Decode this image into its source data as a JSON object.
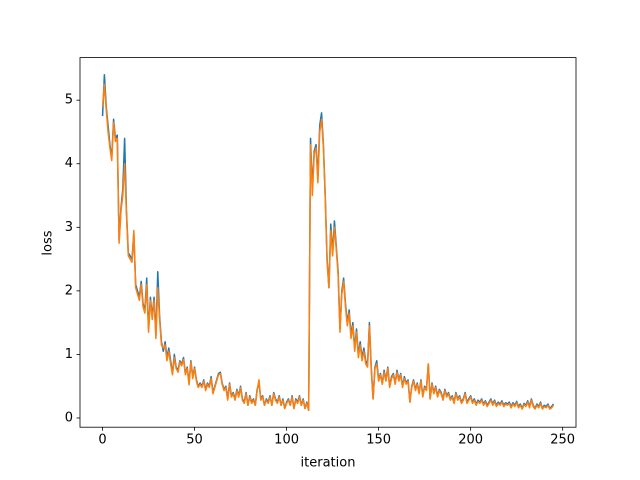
{
  "chart_data": {
    "type": "line",
    "x_label": "iteration",
    "y_label": "loss",
    "x": [
      0,
      1,
      2,
      3,
      4,
      5,
      6,
      7,
      8,
      9,
      10,
      11,
      12,
      13,
      14,
      15,
      16,
      17,
      18,
      19,
      20,
      21,
      22,
      23,
      24,
      25,
      26,
      27,
      28,
      29,
      30,
      31,
      32,
      33,
      34,
      35,
      36,
      37,
      38,
      39,
      40,
      41,
      42,
      43,
      44,
      45,
      46,
      47,
      48,
      49,
      50,
      51,
      52,
      53,
      54,
      55,
      56,
      57,
      58,
      59,
      60,
      61,
      62,
      63,
      64,
      65,
      66,
      67,
      68,
      69,
      70,
      71,
      72,
      73,
      74,
      75,
      76,
      77,
      78,
      79,
      80,
      81,
      82,
      83,
      84,
      85,
      86,
      87,
      88,
      89,
      90,
      91,
      92,
      93,
      94,
      95,
      96,
      97,
      98,
      99,
      100,
      101,
      102,
      103,
      104,
      105,
      106,
      107,
      108,
      109,
      110,
      111,
      112,
      113,
      114,
      115,
      116,
      117,
      118,
      119,
      120,
      121,
      122,
      123,
      124,
      125,
      126,
      127,
      128,
      129,
      130,
      131,
      132,
      133,
      134,
      135,
      136,
      137,
      138,
      139,
      140,
      141,
      142,
      143,
      144,
      145,
      146,
      147,
      148,
      149,
      150,
      151,
      152,
      153,
      154,
      155,
      156,
      157,
      158,
      159,
      160,
      161,
      162,
      163,
      164,
      165,
      166,
      167,
      168,
      169,
      170,
      171,
      172,
      173,
      174,
      175,
      176,
      177,
      178,
      179,
      180,
      181,
      182,
      183,
      184,
      185,
      186,
      187,
      188,
      189,
      190,
      191,
      192,
      193,
      194,
      195,
      196,
      197,
      198,
      199,
      200,
      201,
      202,
      203,
      204,
      205,
      206,
      207,
      208,
      209,
      210,
      211,
      212,
      213,
      214,
      215,
      216,
      217,
      218,
      219,
      220,
      221,
      222,
      223,
      224,
      225,
      226,
      227,
      228,
      229,
      230,
      231,
      232,
      233,
      234,
      235,
      236,
      237,
      238,
      239,
      240,
      241,
      242,
      243,
      244,
      245
    ],
    "series": [
      {
        "color": "#1f77b4",
        "values": [
          4.75,
          5.4,
          4.9,
          4.6,
          4.3,
          4.1,
          4.7,
          4.4,
          4.45,
          2.8,
          3.3,
          3.6,
          4.4,
          3.25,
          2.6,
          2.55,
          2.5,
          2.9,
          2.1,
          2.0,
          1.9,
          2.15,
          1.8,
          1.7,
          2.2,
          1.4,
          1.9,
          1.6,
          1.9,
          1.3,
          2.3,
          1.6,
          1.2,
          1.05,
          1.2,
          0.95,
          1.1,
          0.9,
          0.7,
          1.0,
          0.8,
          0.75,
          0.9,
          0.85,
          0.95,
          0.7,
          0.8,
          0.55,
          0.9,
          0.65,
          0.8,
          0.6,
          0.5,
          0.55,
          0.5,
          0.6,
          0.45,
          0.55,
          0.5,
          0.65,
          0.4,
          0.5,
          0.6,
          0.7,
          0.72,
          0.55,
          0.45,
          0.5,
          0.3,
          0.55,
          0.35,
          0.4,
          0.3,
          0.45,
          0.35,
          0.5,
          0.3,
          0.25,
          0.4,
          0.2,
          0.35,
          0.25,
          0.3,
          0.2,
          0.45,
          0.55,
          0.3,
          0.35,
          0.2,
          0.3,
          0.25,
          0.35,
          0.2,
          0.4,
          0.3,
          0.25,
          0.35,
          0.2,
          0.3,
          0.15,
          0.25,
          0.3,
          0.2,
          0.35,
          0.15,
          0.3,
          0.25,
          0.35,
          0.2,
          0.3,
          0.15,
          0.25,
          0.12,
          4.4,
          3.6,
          4.2,
          4.3,
          3.8,
          4.6,
          4.8,
          4.3,
          3.5,
          2.5,
          2.05,
          3.05,
          2.6,
          3.1,
          2.7,
          2.3,
          1.4,
          2.0,
          2.2,
          1.8,
          1.5,
          1.7,
          1.3,
          1.5,
          1.1,
          1.4,
          1.0,
          1.2,
          0.95,
          1.1,
          0.9,
          0.85,
          1.5,
          0.8,
          0.3,
          0.8,
          0.9,
          0.6,
          0.7,
          0.55,
          0.75,
          0.6,
          0.8,
          0.5,
          0.65,
          0.7,
          0.55,
          0.75,
          0.6,
          0.7,
          0.5,
          0.65,
          0.55,
          0.6,
          0.25,
          0.5,
          0.6,
          0.45,
          0.55,
          0.4,
          0.6,
          0.35,
          0.5,
          0.45,
          0.85,
          0.3,
          0.55,
          0.4,
          0.5,
          0.35,
          0.45,
          0.4,
          0.3,
          0.45,
          0.35,
          0.4,
          0.3,
          0.35,
          0.25,
          0.4,
          0.3,
          0.35,
          0.25,
          0.3,
          0.4,
          0.25,
          0.3,
          0.35,
          0.25,
          0.3,
          0.22,
          0.28,
          0.25,
          0.3,
          0.22,
          0.27,
          0.2,
          0.25,
          0.3,
          0.22,
          0.28,
          0.2,
          0.25,
          0.22,
          0.27,
          0.2,
          0.24,
          0.22,
          0.25,
          0.18,
          0.24,
          0.2,
          0.26,
          0.18,
          0.22,
          0.15,
          0.23,
          0.2,
          0.27,
          0.18,
          0.3,
          0.2,
          0.15,
          0.22,
          0.18,
          0.25,
          0.15,
          0.2,
          0.18,
          0.22,
          0.15,
          0.18,
          0.22
        ]
      },
      {
        "color": "#ff7f0e",
        "values": [
          4.9,
          5.25,
          4.85,
          4.5,
          4.25,
          4.05,
          4.65,
          4.35,
          4.4,
          2.75,
          3.25,
          3.5,
          4.0,
          3.2,
          2.55,
          2.5,
          2.45,
          2.95,
          2.05,
          1.95,
          1.85,
          2.1,
          1.75,
          1.65,
          2.1,
          1.35,
          1.85,
          1.55,
          1.85,
          1.25,
          2.05,
          1.55,
          1.15,
          1.1,
          1.15,
          0.9,
          1.05,
          0.85,
          0.68,
          0.95,
          0.78,
          0.72,
          0.88,
          0.82,
          0.92,
          0.68,
          0.78,
          0.52,
          0.88,
          0.62,
          0.78,
          0.58,
          0.48,
          0.53,
          0.48,
          0.58,
          0.43,
          0.53,
          0.48,
          0.62,
          0.38,
          0.48,
          0.58,
          0.68,
          0.7,
          0.53,
          0.43,
          0.48,
          0.28,
          0.53,
          0.33,
          0.38,
          0.28,
          0.43,
          0.33,
          0.48,
          0.28,
          0.23,
          0.38,
          0.2,
          0.33,
          0.23,
          0.28,
          0.2,
          0.43,
          0.6,
          0.28,
          0.33,
          0.2,
          0.28,
          0.23,
          0.33,
          0.2,
          0.38,
          0.28,
          0.23,
          0.33,
          0.2,
          0.28,
          0.15,
          0.23,
          0.28,
          0.2,
          0.33,
          0.15,
          0.28,
          0.23,
          0.33,
          0.2,
          0.28,
          0.15,
          0.23,
          0.12,
          4.3,
          3.5,
          4.15,
          4.25,
          3.7,
          4.5,
          4.7,
          4.25,
          3.45,
          2.45,
          2.05,
          2.95,
          2.55,
          3.0,
          2.65,
          2.25,
          1.35,
          1.95,
          2.15,
          1.75,
          1.45,
          1.65,
          1.25,
          1.45,
          1.05,
          1.35,
          0.95,
          1.15,
          0.9,
          1.05,
          0.85,
          0.8,
          1.45,
          0.75,
          0.3,
          0.78,
          0.85,
          0.58,
          0.68,
          0.53,
          0.72,
          0.58,
          0.78,
          0.48,
          0.62,
          0.68,
          0.53,
          0.72,
          0.58,
          0.68,
          0.48,
          0.62,
          0.53,
          0.58,
          0.25,
          0.48,
          0.58,
          0.43,
          0.53,
          0.38,
          0.58,
          0.33,
          0.48,
          0.43,
          0.85,
          0.3,
          0.53,
          0.38,
          0.48,
          0.33,
          0.43,
          0.38,
          0.28,
          0.43,
          0.33,
          0.38,
          0.28,
          0.33,
          0.23,
          0.38,
          0.28,
          0.33,
          0.23,
          0.28,
          0.38,
          0.23,
          0.28,
          0.33,
          0.23,
          0.28,
          0.2,
          0.26,
          0.23,
          0.28,
          0.2,
          0.25,
          0.18,
          0.23,
          0.28,
          0.2,
          0.26,
          0.18,
          0.23,
          0.2,
          0.25,
          0.18,
          0.22,
          0.2,
          0.23,
          0.16,
          0.22,
          0.18,
          0.24,
          0.16,
          0.2,
          0.14,
          0.21,
          0.18,
          0.25,
          0.16,
          0.28,
          0.18,
          0.14,
          0.2,
          0.16,
          0.23,
          0.14,
          0.18,
          0.16,
          0.2,
          0.14,
          0.16,
          0.2
        ]
      }
    ],
    "xlim": [
      -12.25,
      257.25
    ],
    "ylim": [
      -0.145,
      5.67
    ],
    "xticks": [
      0,
      50,
      100,
      150,
      200,
      250
    ],
    "yticks": [
      0,
      1,
      2,
      3,
      4,
      5
    ]
  }
}
